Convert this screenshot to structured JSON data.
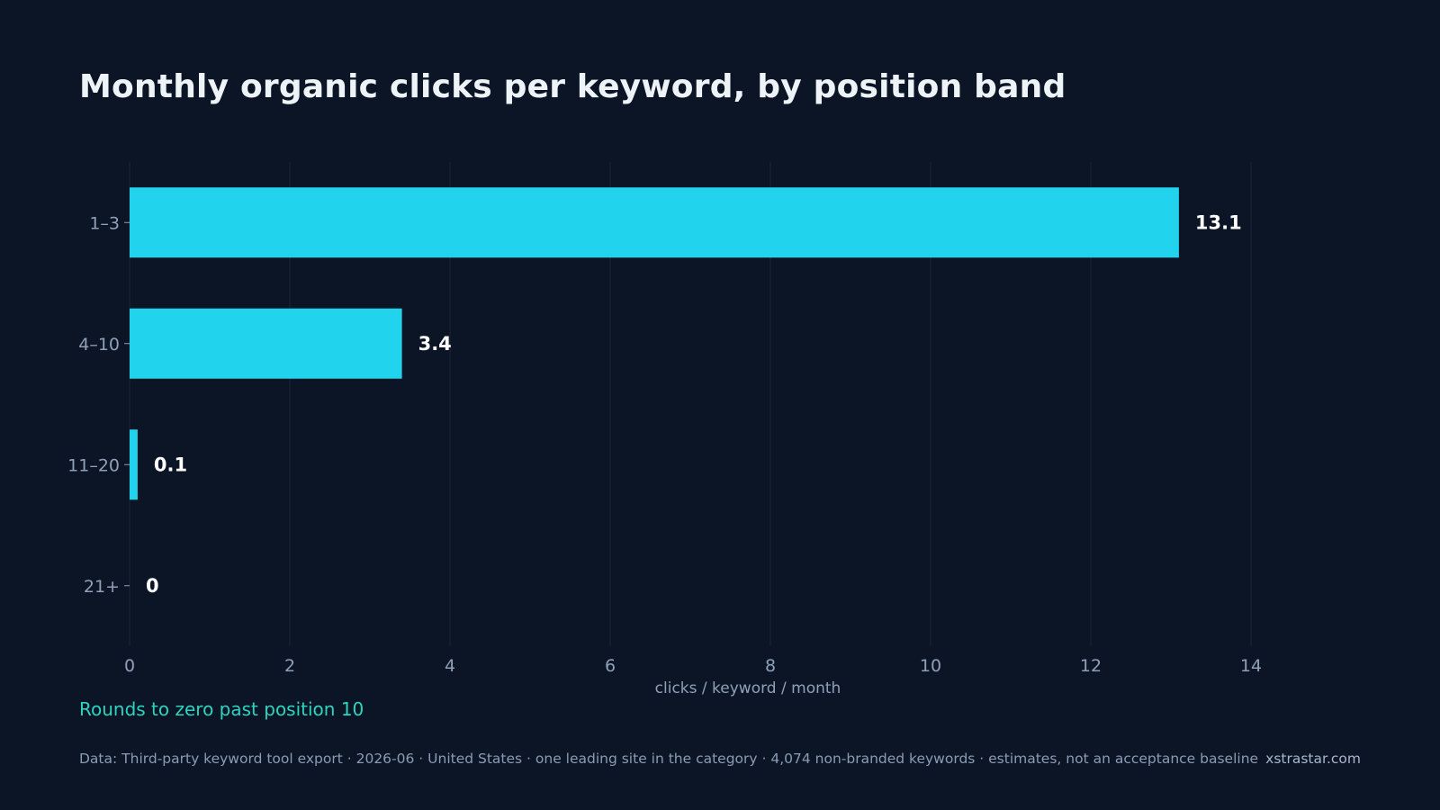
{
  "chart_data": {
    "type": "bar",
    "orientation": "horizontal",
    "title": "Monthly organic clicks per keyword, by position band",
    "categories": [
      "1–3",
      "4–10",
      "11–20",
      "21+"
    ],
    "values": [
      13.1,
      3.4,
      0.1,
      0
    ],
    "value_labels": [
      "13.1",
      "3.4",
      "0.1",
      "0"
    ],
    "xlabel": "clicks / keyword / month",
    "ylabel": "",
    "xlim": [
      0,
      14
    ],
    "xticks": [
      0,
      2,
      4,
      6,
      8,
      10,
      12,
      14
    ],
    "grid": "vertical",
    "annotation": "Rounds to zero past position 10"
  },
  "footer": {
    "source": "Data: Third-party keyword tool export · 2026-06 · United States · one leading site in the category · 4,074 non-branded keywords · estimates, not an acceptance baseline",
    "brand": "xstrastar.com"
  },
  "colors": {
    "background": "#0b1526",
    "bar": "#22d3ee",
    "grid": "#1a2638",
    "annotation": "#2dd4bf",
    "value_label": "#ffffff",
    "tick_label": "#8fa0b8"
  }
}
